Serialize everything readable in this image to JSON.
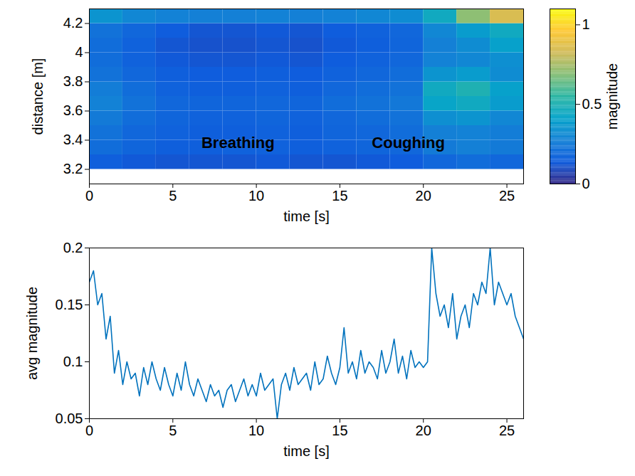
{
  "chart_data": [
    {
      "type": "heatmap",
      "x_label": "time [s]",
      "y_label": "distance [m]",
      "xlim": [
        0,
        26
      ],
      "xticks": [
        0,
        5,
        10,
        15,
        20,
        25
      ],
      "ylim": [
        3.1,
        4.3
      ],
      "yticks": [
        3.2,
        3.4,
        3.6,
        3.8,
        4,
        4.2
      ],
      "x_bins": [
        0,
        2,
        4,
        6,
        8,
        10,
        12,
        14,
        16,
        18,
        20,
        22,
        24,
        26
      ],
      "y_bins": [
        3.2,
        3.3,
        3.4,
        3.5,
        3.6,
        3.7,
        3.8,
        3.9,
        4.0,
        4.1,
        4.2,
        4.3
      ],
      "cells": [
        [
          0.15,
          0.13,
          0.12,
          0.12,
          0.12,
          0.13,
          0.12,
          0.12,
          0.13,
          0.14,
          0.18,
          0.2,
          0.18
        ],
        [
          0.2,
          0.17,
          0.15,
          0.15,
          0.16,
          0.16,
          0.15,
          0.16,
          0.17,
          0.18,
          0.25,
          0.27,
          0.25
        ],
        [
          0.22,
          0.18,
          0.16,
          0.15,
          0.15,
          0.16,
          0.15,
          0.17,
          0.18,
          0.2,
          0.27,
          0.28,
          0.26
        ],
        [
          0.25,
          0.2,
          0.17,
          0.16,
          0.16,
          0.17,
          0.16,
          0.18,
          0.2,
          0.22,
          0.33,
          0.35,
          0.3
        ],
        [
          0.28,
          0.22,
          0.18,
          0.17,
          0.17,
          0.18,
          0.17,
          0.2,
          0.22,
          0.24,
          0.42,
          0.45,
          0.38
        ],
        [
          0.26,
          0.2,
          0.16,
          0.15,
          0.15,
          0.16,
          0.15,
          0.18,
          0.2,
          0.22,
          0.45,
          0.5,
          0.4
        ],
        [
          0.22,
          0.18,
          0.15,
          0.14,
          0.14,
          0.15,
          0.14,
          0.16,
          0.18,
          0.2,
          0.35,
          0.38,
          0.32
        ],
        [
          0.2,
          0.16,
          0.13,
          0.12,
          0.12,
          0.13,
          0.12,
          0.14,
          0.16,
          0.18,
          0.28,
          0.3,
          0.33
        ],
        [
          0.2,
          0.16,
          0.12,
          0.11,
          0.11,
          0.12,
          0.11,
          0.13,
          0.15,
          0.17,
          0.27,
          0.32,
          0.4
        ],
        [
          0.22,
          0.18,
          0.14,
          0.12,
          0.12,
          0.13,
          0.12,
          0.14,
          0.16,
          0.18,
          0.3,
          0.38,
          0.45
        ],
        [
          0.35,
          0.3,
          0.28,
          0.27,
          0.27,
          0.28,
          0.27,
          0.28,
          0.3,
          0.32,
          0.45,
          0.7,
          0.85
        ]
      ],
      "colorbar": {
        "label": "magnitude",
        "lim": [
          0,
          1.1
        ],
        "ticks": [
          0,
          0.5,
          1
        ]
      },
      "annotations": [
        {
          "text": "Breathing",
          "x": 8.9,
          "y": 3.38
        },
        {
          "text": "Coughing",
          "x": 19.1,
          "y": 3.38
        }
      ]
    },
    {
      "type": "line",
      "x_label": "time [s]",
      "y_label": "avg magnitude",
      "xlim": [
        0,
        26
      ],
      "xticks": [
        0,
        5,
        10,
        15,
        20,
        25
      ],
      "ylim": [
        0.05,
        0.2
      ],
      "yticks": [
        0.05,
        0.1,
        0.15,
        0.2
      ],
      "color": "#0072bd",
      "x": [
        0,
        0.25,
        0.5,
        0.75,
        1,
        1.25,
        1.5,
        1.75,
        2,
        2.25,
        2.5,
        2.75,
        3,
        3.25,
        3.5,
        3.75,
        4,
        4.25,
        4.5,
        4.75,
        5,
        5.25,
        5.5,
        5.75,
        6,
        6.25,
        6.5,
        6.75,
        7,
        7.25,
        7.5,
        7.75,
        8,
        8.25,
        8.5,
        8.75,
        9,
        9.25,
        9.5,
        9.75,
        10,
        10.25,
        10.5,
        10.75,
        11,
        11.25,
        11.5,
        11.75,
        12,
        12.25,
        12.5,
        12.75,
        13,
        13.25,
        13.5,
        13.75,
        14,
        14.25,
        14.5,
        14.75,
        15,
        15.25,
        15.5,
        15.75,
        16,
        16.25,
        16.5,
        16.75,
        17,
        17.25,
        17.5,
        17.75,
        18,
        18.25,
        18.5,
        18.75,
        19,
        19.25,
        19.5,
        19.75,
        20,
        20.25,
        20.5,
        20.75,
        21,
        21.25,
        21.5,
        21.75,
        22,
        22.25,
        22.5,
        22.75,
        23,
        23.25,
        23.5,
        23.75,
        24,
        24.25,
        24.5,
        24.75,
        25,
        25.25,
        25.5,
        25.75,
        26
      ],
      "values": [
        0.17,
        0.18,
        0.15,
        0.16,
        0.12,
        0.14,
        0.09,
        0.11,
        0.08,
        0.1,
        0.085,
        0.09,
        0.07,
        0.095,
        0.08,
        0.1,
        0.085,
        0.075,
        0.095,
        0.08,
        0.07,
        0.09,
        0.075,
        0.1,
        0.08,
        0.07,
        0.085,
        0.075,
        0.065,
        0.08,
        0.07,
        0.075,
        0.06,
        0.075,
        0.08,
        0.065,
        0.075,
        0.085,
        0.07,
        0.08,
        0.07,
        0.09,
        0.075,
        0.08,
        0.085,
        0.05,
        0.08,
        0.09,
        0.075,
        0.095,
        0.08,
        0.085,
        0.09,
        0.075,
        0.1,
        0.08,
        0.085,
        0.105,
        0.09,
        0.08,
        0.095,
        0.13,
        0.09,
        0.1,
        0.085,
        0.11,
        0.09,
        0.1,
        0.095,
        0.085,
        0.11,
        0.09,
        0.1,
        0.12,
        0.09,
        0.105,
        0.085,
        0.11,
        0.095,
        0.1,
        0.095,
        0.1,
        0.2,
        0.16,
        0.14,
        0.15,
        0.13,
        0.16,
        0.12,
        0.14,
        0.15,
        0.13,
        0.16,
        0.15,
        0.17,
        0.16,
        0.2,
        0.15,
        0.17,
        0.16,
        0.15,
        0.16,
        0.14,
        0.13,
        0.12
      ]
    }
  ]
}
